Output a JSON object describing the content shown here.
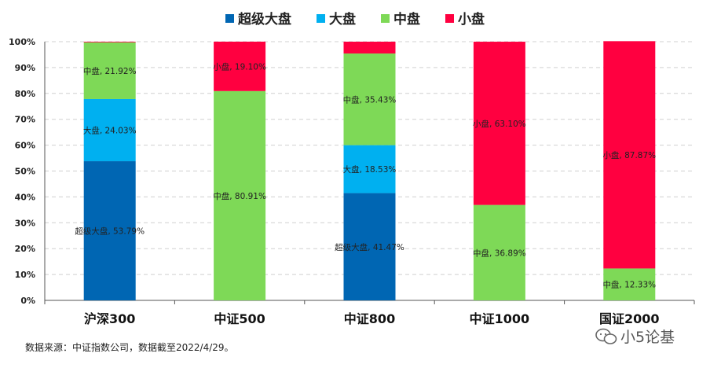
{
  "chart_data": {
    "type": "bar",
    "stacked": true,
    "categories": [
      "沪深300",
      "中证500",
      "中证800",
      "中证1000",
      "国证2000"
    ],
    "series": [
      {
        "name": "超级大盘",
        "color": "#0066b3",
        "values": [
          53.79,
          0,
          41.47,
          0,
          0
        ],
        "labels": [
          "超级大盘, 53.79%",
          "",
          "超级大盘, 41.47%",
          "",
          ""
        ]
      },
      {
        "name": "大盘",
        "color": "#00b0f0",
        "values": [
          24.03,
          0,
          18.53,
          0,
          0
        ],
        "labels": [
          "大盘, 24.03%",
          "",
          "大盘, 18.53%",
          "",
          ""
        ]
      },
      {
        "name": "中盘",
        "color": "#7ed957",
        "values": [
          21.92,
          80.91,
          35.43,
          36.89,
          12.33
        ],
        "labels": [
          "中盘, 21.92%",
          "中盘, 80.91%",
          "中盘, 35.43%",
          "中盘, 36.89%",
          "中盘, 12.33%"
        ]
      },
      {
        "name": "小盘",
        "color": "#ff0040",
        "values": [
          0.26,
          19.1,
          4.57,
          63.1,
          87.87
        ],
        "labels": [
          "",
          "小盘, 19.10%",
          "",
          "小盘, 63.10%",
          "小盘, 87.87%"
        ]
      }
    ],
    "yticks": [
      "0%",
      "10%",
      "20%",
      "30%",
      "40%",
      "50%",
      "60%",
      "70%",
      "80%",
      "90%",
      "100%"
    ],
    "ylim": [
      0,
      100
    ],
    "grid": true,
    "legend_position": "top"
  },
  "source_note": "数据来源：中证指数公司，数据截至2022/4/29。",
  "watermark": "小5论基"
}
